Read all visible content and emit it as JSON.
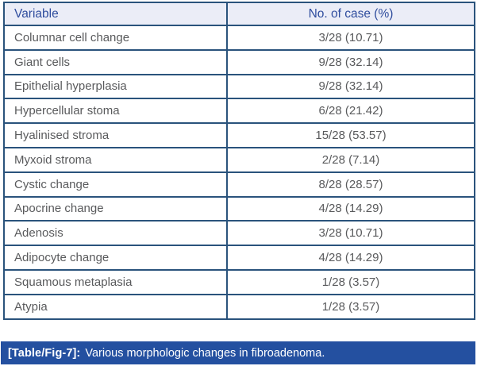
{
  "table": {
    "columns": [
      "Variable",
      "No. of case (%)"
    ],
    "rows": [
      [
        "Columnar cell change",
        "3/28 (10.71)"
      ],
      [
        "Giant cells",
        "9/28 (32.14)"
      ],
      [
        "Epithelial hyperplasia",
        "9/28 (32.14)"
      ],
      [
        "Hypercellular stoma",
        "6/28 (21.42)"
      ],
      [
        "Hyalinised stroma",
        "15/28 (53.57)"
      ],
      [
        "Myxoid stroma",
        "2/28 (7.14)"
      ],
      [
        "Cystic change",
        "8/28 (28.57)"
      ],
      [
        "Apocrine change",
        "4/28 (14.29)"
      ],
      [
        "Adenosis",
        "3/28 (10.71)"
      ],
      [
        "Adipocyte change",
        "4/28 (14.29)"
      ],
      [
        "Squamous metaplasia",
        "1/28 (3.57)"
      ],
      [
        "Atypia",
        "1/28 (3.57)"
      ]
    ]
  },
  "caption": {
    "label": "[Table/Fig-7]:",
    "text": "Various morphologic changes in fibroadenoma."
  },
  "colors": {
    "border": "#2a537c",
    "header_bg": "#ebedf7",
    "header_text": "#2f4d9e",
    "body_text": "#595a5c",
    "caption_bg": "#2450a0",
    "caption_text": "#ffffff"
  }
}
